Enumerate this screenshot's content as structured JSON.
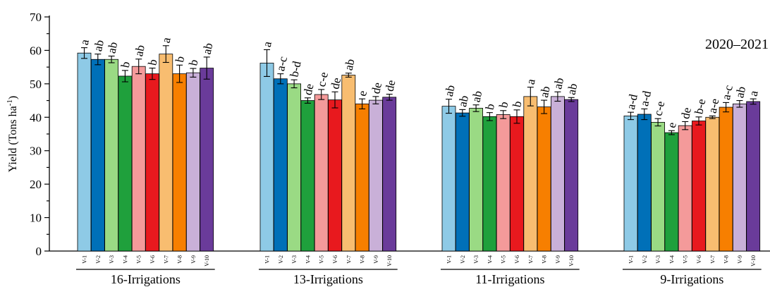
{
  "chart_data": {
    "type": "bar",
    "title": "",
    "season_label": "2020–2021",
    "ylabel_main": "Yield (Tons ha",
    "ylabel_sup": "-1",
    "ylabel_end": ")",
    "ylim": [
      0,
      70
    ],
    "yticks": [
      0,
      10,
      20,
      30,
      40,
      50,
      60,
      70
    ],
    "varieties": [
      "V-1",
      "V-2",
      "V-3",
      "V-4",
      "V-5",
      "V-6",
      "V-7",
      "V-8",
      "V-9",
      "V-10"
    ],
    "colors": [
      "#8ecae6",
      "#0070b8",
      "#9ada84",
      "#1fa03c",
      "#f49a9a",
      "#e8191e",
      "#f8bd70",
      "#f77f00",
      "#c9b0d8",
      "#6a3b9a"
    ],
    "groups": [
      {
        "label": "16-Irrigations",
        "values": [
          59.2,
          57.3,
          57.3,
          52.3,
          55.2,
          53.0,
          58.9,
          53.0,
          53.3,
          54.7
        ],
        "errors": [
          1.6,
          1.6,
          1.0,
          1.7,
          2.2,
          1.7,
          2.5,
          2.6,
          1.3,
          3.3
        ],
        "letters": [
          "a",
          "ab",
          "ab",
          "b",
          "ab",
          "b",
          "a",
          "b",
          "b",
          "ab"
        ]
      },
      {
        "label": "13-Irrigations",
        "values": [
          56.2,
          51.5,
          50.0,
          45.0,
          46.8,
          45.2,
          52.6,
          44.0,
          45.1,
          46.0
        ],
        "errors": [
          4.0,
          1.5,
          1.2,
          0.8,
          1.5,
          2.4,
          0.6,
          1.5,
          1.1,
          0.9
        ],
        "letters": [
          "a",
          "a-c",
          "b-d",
          "de",
          "c-e",
          "de",
          "ab",
          "e",
          "de",
          "de"
        ]
      },
      {
        "label": "11-Irrigations",
        "values": [
          43.3,
          41.3,
          42.7,
          40.2,
          40.8,
          40.2,
          46.2,
          43.1,
          46.2,
          45.3
        ],
        "errors": [
          2.1,
          1.0,
          1.0,
          1.2,
          1.2,
          2.0,
          2.8,
          2.0,
          1.4,
          0.6
        ],
        "letters": [
          "ab",
          "ab",
          "ab",
          "b",
          "b",
          "b",
          "a",
          "ab",
          "ab",
          "ab"
        ]
      },
      {
        "label": "9-Irrigations",
        "values": [
          40.4,
          40.9,
          38.5,
          35.4,
          37.5,
          38.9,
          40.0,
          43.0,
          44.0,
          44.7
        ],
        "errors": [
          1.1,
          1.6,
          1.1,
          0.6,
          1.2,
          1.2,
          0.4,
          1.4,
          1.0,
          0.8
        ],
        "letters": [
          "a-d",
          "a-d",
          "c-e",
          "e",
          "de",
          "b-e",
          "a-e",
          "a-c",
          "ab",
          "a"
        ]
      }
    ]
  }
}
